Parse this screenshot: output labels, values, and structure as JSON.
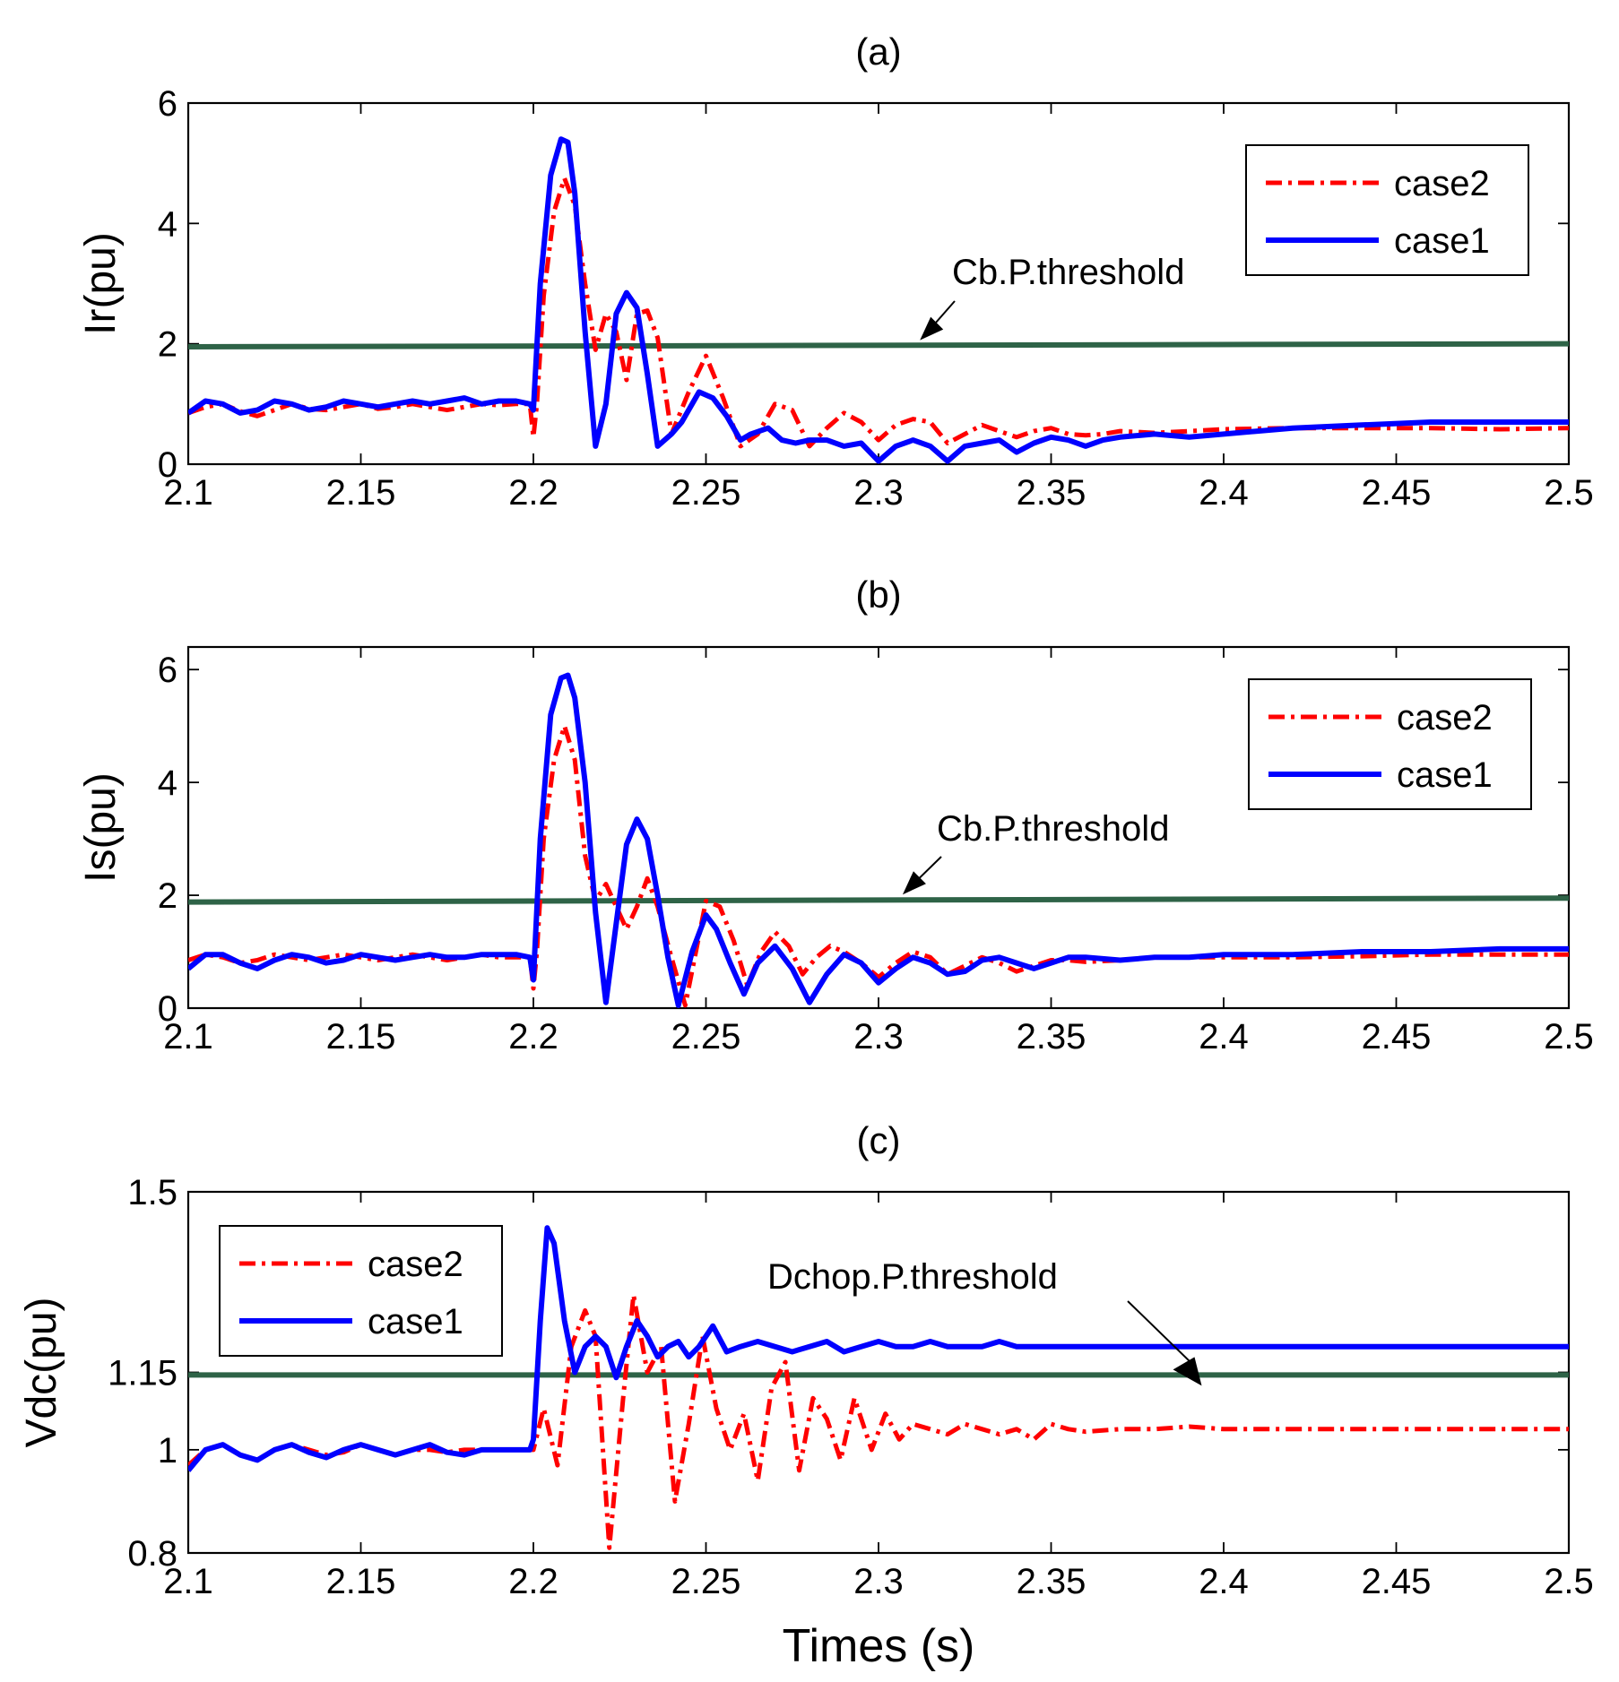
{
  "colors": {
    "case2": "#ff0000",
    "case1": "#0000ff",
    "threshold": "#2e6347",
    "axes": "#000000"
  },
  "xlabel": "Times (s)",
  "chart_data": [
    {
      "type": "line",
      "title": "(a)",
      "ylabel": "Ir(pu)",
      "xlim": [
        2.1,
        2.5
      ],
      "ylim": [
        0,
        6
      ],
      "xticks": [
        "2.1",
        "2.15",
        "2.2",
        "2.25",
        "2.3",
        "2.35",
        "2.4",
        "2.45",
        "2.5"
      ],
      "yticks": [
        "0",
        "2",
        "4",
        "6"
      ],
      "ytick_values": [
        0,
        2,
        4,
        6
      ],
      "legend": {
        "position": "top-right",
        "entries": [
          "case2",
          "case1"
        ]
      },
      "annotation": {
        "text": "Cb.P.threshold",
        "x": 2.312,
        "y": 2.0
      },
      "threshold": {
        "name": "Cb.P.threshold",
        "x": [
          2.1,
          2.5
        ],
        "y": [
          1.95,
          2.0
        ]
      },
      "series": [
        {
          "name": "case2",
          "x": [
            2.1,
            2.105,
            2.11,
            2.115,
            2.12,
            2.125,
            2.13,
            2.135,
            2.14,
            2.145,
            2.15,
            2.155,
            2.16,
            2.165,
            2.17,
            2.175,
            2.18,
            2.185,
            2.19,
            2.195,
            2.199,
            2.2,
            2.201,
            2.203,
            2.206,
            2.209,
            2.212,
            2.215,
            2.218,
            2.221,
            2.224,
            2.227,
            2.23,
            2.233,
            2.236,
            2.24,
            2.245,
            2.25,
            2.255,
            2.26,
            2.265,
            2.27,
            2.275,
            2.28,
            2.285,
            2.29,
            2.295,
            2.3,
            2.305,
            2.31,
            2.315,
            2.32,
            2.325,
            2.33,
            2.335,
            2.34,
            2.345,
            2.35,
            2.355,
            2.36,
            2.365,
            2.37,
            2.38,
            2.39,
            2.4,
            2.42,
            2.44,
            2.46,
            2.48,
            2.5
          ],
          "y": [
            0.85,
            0.95,
            1.0,
            0.88,
            0.8,
            0.9,
            1.0,
            0.92,
            0.9,
            0.95,
            1.0,
            0.92,
            0.95,
            1.0,
            0.95,
            0.9,
            0.95,
            1.0,
            0.98,
            1.0,
            1.0,
            0.45,
            1.0,
            2.8,
            4.2,
            4.75,
            4.3,
            3.0,
            1.9,
            2.5,
            2.2,
            1.4,
            2.5,
            2.55,
            2.1,
            0.5,
            1.2,
            1.8,
            1.1,
            0.3,
            0.5,
            1.0,
            0.9,
            0.3,
            0.6,
            0.85,
            0.7,
            0.4,
            0.65,
            0.75,
            0.7,
            0.35,
            0.5,
            0.65,
            0.55,
            0.45,
            0.55,
            0.6,
            0.5,
            0.48,
            0.5,
            0.55,
            0.52,
            0.55,
            0.58,
            0.6,
            0.6,
            0.6,
            0.58,
            0.6
          ]
        },
        {
          "name": "case1",
          "x": [
            2.1,
            2.105,
            2.11,
            2.115,
            2.12,
            2.125,
            2.13,
            2.135,
            2.14,
            2.145,
            2.15,
            2.155,
            2.16,
            2.165,
            2.17,
            2.175,
            2.18,
            2.185,
            2.19,
            2.195,
            2.199,
            2.2,
            2.202,
            2.205,
            2.208,
            2.21,
            2.212,
            2.215,
            2.218,
            2.221,
            2.224,
            2.227,
            2.23,
            2.233,
            2.236,
            2.24,
            2.243,
            2.248,
            2.252,
            2.256,
            2.26,
            2.263,
            2.268,
            2.272,
            2.276,
            2.28,
            2.285,
            2.29,
            2.295,
            2.3,
            2.305,
            2.31,
            2.315,
            2.32,
            2.325,
            2.33,
            2.335,
            2.34,
            2.345,
            2.35,
            2.355,
            2.36,
            2.365,
            2.37,
            2.38,
            2.39,
            2.4,
            2.42,
            2.44,
            2.46,
            2.48,
            2.5
          ],
          "y": [
            0.85,
            1.05,
            1.0,
            0.85,
            0.9,
            1.05,
            1.0,
            0.9,
            0.95,
            1.05,
            1.0,
            0.95,
            1.0,
            1.05,
            1.0,
            1.05,
            1.1,
            1.0,
            1.05,
            1.05,
            1.0,
            0.9,
            3.0,
            4.8,
            5.4,
            5.35,
            4.5,
            2.2,
            0.3,
            1.0,
            2.5,
            2.85,
            2.6,
            1.5,
            0.3,
            0.5,
            0.7,
            1.2,
            1.1,
            0.8,
            0.4,
            0.5,
            0.6,
            0.4,
            0.35,
            0.4,
            0.4,
            0.3,
            0.35,
            0.05,
            0.3,
            0.4,
            0.3,
            0.05,
            0.3,
            0.35,
            0.4,
            0.2,
            0.35,
            0.45,
            0.4,
            0.3,
            0.4,
            0.45,
            0.5,
            0.45,
            0.5,
            0.6,
            0.65,
            0.7,
            0.7,
            0.7
          ]
        }
      ]
    },
    {
      "type": "line",
      "title": "(b)",
      "ylabel": "Is(pu)",
      "xlim": [
        2.1,
        2.5
      ],
      "ylim": [
        0,
        6.4
      ],
      "xticks": [
        "2.1",
        "2.15",
        "2.2",
        "2.25",
        "2.3",
        "2.35",
        "2.4",
        "2.45",
        "2.5"
      ],
      "yticks": [
        "0",
        "2",
        "4",
        "6"
      ],
      "ytick_values": [
        0,
        2,
        4,
        6
      ],
      "legend": {
        "position": "top-right",
        "entries": [
          "case2",
          "case1"
        ]
      },
      "annotation": {
        "text": "Cb.P.threshold",
        "x": 2.307,
        "y": 1.95
      },
      "threshold": {
        "name": "Cb.P.threshold",
        "x": [
          2.1,
          2.5
        ],
        "y": [
          1.88,
          1.95
        ]
      },
      "series": [
        {
          "name": "case2",
          "x": [
            2.1,
            2.105,
            2.11,
            2.115,
            2.12,
            2.125,
            2.13,
            2.135,
            2.14,
            2.145,
            2.15,
            2.155,
            2.16,
            2.165,
            2.17,
            2.175,
            2.18,
            2.185,
            2.19,
            2.195,
            2.199,
            2.2,
            2.201,
            2.203,
            2.206,
            2.209,
            2.212,
            2.215,
            2.218,
            2.221,
            2.224,
            2.227,
            2.23,
            2.233,
            2.236,
            2.24,
            2.244,
            2.25,
            2.254,
            2.258,
            2.262,
            2.266,
            2.27,
            2.274,
            2.278,
            2.282,
            2.286,
            2.29,
            2.295,
            2.3,
            2.305,
            2.31,
            2.315,
            2.32,
            2.325,
            2.33,
            2.335,
            2.34,
            2.345,
            2.35,
            2.355,
            2.36,
            2.37,
            2.38,
            2.39,
            2.4,
            2.42,
            2.44,
            2.46,
            2.48,
            2.5
          ],
          "y": [
            0.85,
            0.95,
            0.9,
            0.8,
            0.85,
            0.95,
            0.9,
            0.85,
            0.9,
            0.95,
            0.9,
            0.85,
            0.9,
            0.95,
            0.9,
            0.85,
            0.9,
            0.95,
            0.9,
            0.9,
            0.9,
            0.35,
            1.0,
            3.0,
            4.4,
            5.0,
            4.4,
            2.7,
            1.9,
            2.2,
            1.8,
            1.4,
            1.8,
            2.3,
            1.8,
            0.9,
            0.05,
            1.9,
            1.8,
            1.2,
            0.4,
            1.0,
            1.35,
            1.1,
            0.6,
            0.9,
            1.1,
            1.0,
            0.8,
            0.55,
            0.8,
            1.0,
            0.9,
            0.6,
            0.75,
            0.9,
            0.8,
            0.65,
            0.75,
            0.85,
            0.85,
            0.82,
            0.85,
            0.9,
            0.9,
            0.9,
            0.9,
            0.92,
            0.95,
            0.95,
            0.95
          ]
        },
        {
          "name": "case1",
          "x": [
            2.1,
            2.105,
            2.11,
            2.115,
            2.12,
            2.125,
            2.13,
            2.135,
            2.14,
            2.145,
            2.15,
            2.155,
            2.16,
            2.165,
            2.17,
            2.175,
            2.18,
            2.185,
            2.19,
            2.195,
            2.199,
            2.2,
            2.202,
            2.205,
            2.208,
            2.21,
            2.212,
            2.215,
            2.218,
            2.221,
            2.224,
            2.227,
            2.23,
            2.233,
            2.236,
            2.239,
            2.242,
            2.246,
            2.25,
            2.253,
            2.257,
            2.261,
            2.265,
            2.27,
            2.275,
            2.28,
            2.285,
            2.29,
            2.295,
            2.3,
            2.305,
            2.31,
            2.315,
            2.32,
            2.325,
            2.33,
            2.335,
            2.34,
            2.345,
            2.35,
            2.355,
            2.36,
            2.37,
            2.38,
            2.39,
            2.4,
            2.42,
            2.44,
            2.46,
            2.48,
            2.5
          ],
          "y": [
            0.7,
            0.95,
            0.95,
            0.8,
            0.7,
            0.85,
            0.95,
            0.9,
            0.8,
            0.85,
            0.95,
            0.9,
            0.85,
            0.9,
            0.95,
            0.9,
            0.9,
            0.95,
            0.95,
            0.95,
            0.9,
            0.5,
            3.0,
            5.2,
            5.85,
            5.9,
            5.5,
            4.0,
            1.7,
            0.1,
            1.5,
            2.9,
            3.35,
            3.0,
            2.0,
            0.9,
            0.05,
            1.0,
            1.65,
            1.4,
            0.8,
            0.25,
            0.8,
            1.1,
            0.7,
            0.1,
            0.6,
            0.95,
            0.8,
            0.45,
            0.7,
            0.9,
            0.8,
            0.6,
            0.65,
            0.85,
            0.9,
            0.8,
            0.7,
            0.8,
            0.9,
            0.9,
            0.85,
            0.9,
            0.9,
            0.95,
            0.95,
            1.0,
            1.0,
            1.05,
            1.05
          ]
        }
      ]
    },
    {
      "type": "line",
      "title": "(c)",
      "ylabel": "Vdc(pu)",
      "xlim": [
        2.1,
        2.5
      ],
      "ylim": [
        0.8,
        1.5
      ],
      "xticks": [
        "2.1",
        "2.15",
        "2.2",
        "2.25",
        "2.3",
        "2.35",
        "2.4",
        "2.45",
        "2.5"
      ],
      "yticks": [
        "0.8",
        "1",
        "1.15",
        "1.5"
      ],
      "ytick_values": [
        0.8,
        1.0,
        1.15,
        1.5
      ],
      "legend": {
        "position": "top-left",
        "entries": [
          "case2",
          "case1"
        ]
      },
      "annotation": {
        "text": "Dchop.P.threshold",
        "x": 2.39,
        "y": 1.145
      },
      "threshold": {
        "name": "Dchop.P.threshold",
        "x": [
          2.1,
          2.5
        ],
        "y": [
          1.145,
          1.145
        ]
      },
      "series": [
        {
          "name": "case2",
          "x": [
            2.1,
            2.105,
            2.11,
            2.115,
            2.12,
            2.125,
            2.13,
            2.135,
            2.14,
            2.145,
            2.15,
            2.155,
            2.16,
            2.165,
            2.17,
            2.175,
            2.18,
            2.185,
            2.19,
            2.195,
            2.199,
            2.2,
            2.203,
            2.207,
            2.211,
            2.215,
            2.218,
            2.222,
            2.226,
            2.229,
            2.233,
            2.237,
            2.241,
            2.245,
            2.249,
            2.253,
            2.257,
            2.261,
            2.265,
            2.269,
            2.273,
            2.277,
            2.281,
            2.285,
            2.289,
            2.293,
            2.298,
            2.302,
            2.306,
            2.31,
            2.315,
            2.32,
            2.325,
            2.33,
            2.335,
            2.34,
            2.345,
            2.35,
            2.355,
            2.36,
            2.37,
            2.38,
            2.39,
            2.4,
            2.42,
            2.44,
            2.46,
            2.48,
            2.5
          ],
          "y": [
            0.97,
            1.0,
            1.01,
            0.99,
            0.98,
            1.0,
            1.01,
            1.0,
            0.99,
            0.995,
            1.01,
            1.0,
            0.99,
            1.0,
            1.0,
            0.995,
            1.0,
            1.0,
            1.0,
            1.0,
            1.0,
            1.0,
            1.08,
            0.97,
            1.2,
            1.27,
            1.22,
            0.81,
            1.1,
            1.3,
            1.15,
            1.2,
            0.9,
            1.05,
            1.22,
            1.08,
            1.0,
            1.07,
            0.94,
            1.12,
            1.17,
            0.96,
            1.1,
            1.06,
            0.98,
            1.1,
            1.0,
            1.07,
            1.02,
            1.05,
            1.04,
            1.03,
            1.05,
            1.04,
            1.03,
            1.04,
            1.02,
            1.05,
            1.04,
            1.035,
            1.04,
            1.04,
            1.045,
            1.04,
            1.04,
            1.04,
            1.04,
            1.04,
            1.04
          ]
        },
        {
          "name": "case1",
          "x": [
            2.1,
            2.105,
            2.11,
            2.115,
            2.12,
            2.125,
            2.13,
            2.135,
            2.14,
            2.145,
            2.15,
            2.155,
            2.16,
            2.165,
            2.17,
            2.175,
            2.18,
            2.185,
            2.19,
            2.195,
            2.199,
            2.2,
            2.202,
            2.204,
            2.206,
            2.209,
            2.212,
            2.215,
            2.218,
            2.221,
            2.224,
            2.227,
            2.23,
            2.233,
            2.236,
            2.239,
            2.242,
            2.245,
            2.248,
            2.252,
            2.256,
            2.26,
            2.265,
            2.27,
            2.275,
            2.28,
            2.285,
            2.29,
            2.295,
            2.3,
            2.305,
            2.31,
            2.315,
            2.32,
            2.325,
            2.33,
            2.335,
            2.34,
            2.345,
            2.35,
            2.355,
            2.36,
            2.37,
            2.38,
            2.39,
            2.4,
            2.42,
            2.44,
            2.46,
            2.48,
            2.5
          ],
          "y": [
            0.96,
            1.0,
            1.01,
            0.99,
            0.98,
            1.0,
            1.01,
            0.995,
            0.985,
            1.0,
            1.01,
            1.0,
            0.99,
            1.0,
            1.01,
            0.995,
            0.99,
            1.0,
            1.0,
            1.0,
            1.0,
            1.02,
            1.25,
            1.43,
            1.4,
            1.25,
            1.15,
            1.2,
            1.22,
            1.2,
            1.14,
            1.2,
            1.25,
            1.22,
            1.18,
            1.2,
            1.21,
            1.18,
            1.2,
            1.24,
            1.19,
            1.2,
            1.21,
            1.2,
            1.19,
            1.2,
            1.21,
            1.19,
            1.2,
            1.21,
            1.2,
            1.2,
            1.21,
            1.2,
            1.2,
            1.2,
            1.21,
            1.2,
            1.2,
            1.2,
            1.2,
            1.2,
            1.2,
            1.2,
            1.2,
            1.2,
            1.2,
            1.2,
            1.2,
            1.2,
            1.2
          ]
        }
      ]
    }
  ]
}
